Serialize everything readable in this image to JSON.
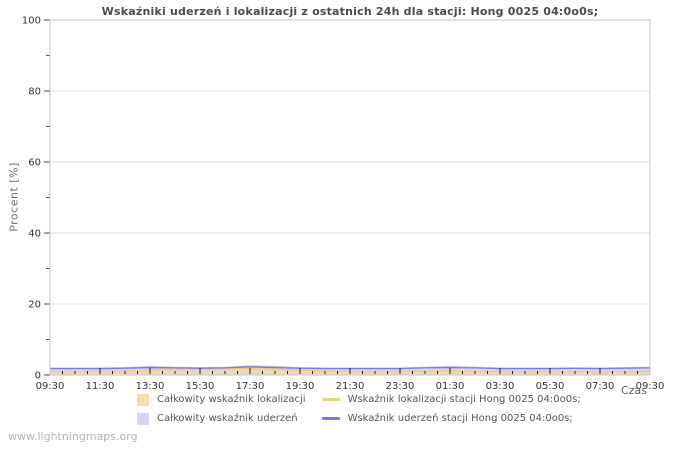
{
  "title": "Wskaźniki uderzeń i lokalizacji z ostatnich 24h dla stacji: Hong 0025 04:0o0s;",
  "watermark": "www.lightningmaps.org",
  "axes": {
    "y_label": "Procent  [%]",
    "x_label": "Czas"
  },
  "legend": [
    {
      "type": "area",
      "color": "#f8ddb0",
      "label": "Całkowity wskaźnik lokalizacji"
    },
    {
      "type": "area",
      "color": "#d4d4f5",
      "label": "Całkowity wskaźnik uderzeń"
    },
    {
      "type": "line",
      "color": "#f2ca7e",
      "label": "Wskaźnik lokalizacji stacji Hong 0025 04:0o0s;"
    },
    {
      "type": "line",
      "color": "#7b7bdf",
      "label": "Wskaźnik uderzeń stacji Hong 0025 04:0o0s;"
    }
  ],
  "chart_data": {
    "type": "area",
    "title": "Wskaźniki uderzeń i lokalizacji z ostatnich 24h dla stacji: Hong 0025 04:0o0s;",
    "xlabel": "Czas",
    "ylabel": "Procent [%]",
    "ylim": [
      0,
      100
    ],
    "y_ticks": [
      0,
      20,
      40,
      60,
      80,
      100
    ],
    "y_minor_ticks": [
      10,
      30,
      50,
      70,
      90
    ],
    "grid": true,
    "legend_position": "bottom",
    "x": [
      "09:30",
      "10:30",
      "11:30",
      "12:30",
      "13:30",
      "14:30",
      "15:30",
      "16:30",
      "17:30",
      "18:30",
      "19:30",
      "20:30",
      "21:30",
      "22:30",
      "23:30",
      "00:30",
      "01:30",
      "02:30",
      "03:30",
      "04:30",
      "05:30",
      "06:30",
      "07:30",
      "08:30",
      "09:30"
    ],
    "x_tick_labels": [
      "09:30",
      "11:30",
      "13:30",
      "15:30",
      "17:30",
      "19:30",
      "21:30",
      "23:30",
      "01:30",
      "03:30",
      "05:30",
      "07:30",
      "09:30"
    ],
    "x_minor_tick_interval_minutes": 30,
    "series": [
      {
        "name": "Całkowity wskaźnik uderzeń",
        "type": "area",
        "color": "#cfcff0",
        "stroke": "#c2c2ea",
        "fill_opacity": 0.8,
        "values": [
          2.0,
          2.0,
          2.0,
          2.1,
          2.4,
          2.2,
          2.1,
          2.2,
          2.6,
          2.4,
          2.1,
          2.0,
          2.0,
          2.0,
          2.0,
          2.2,
          2.4,
          2.2,
          2.0,
          2.0,
          2.0,
          2.0,
          2.0,
          2.1,
          2.2
        ]
      },
      {
        "name": "Całkowity wskaźnik lokalizacji",
        "type": "area",
        "color": "#f3d9a8",
        "stroke": "#e9cb90",
        "fill_opacity": 0.65,
        "values": [
          0.9,
          1.0,
          1.0,
          1.1,
          1.5,
          1.8,
          1.9,
          2.1,
          2.2,
          1.8,
          1.4,
          1.2,
          1.1,
          1.0,
          1.1,
          1.2,
          1.3,
          1.2,
          1.0,
          0.9,
          1.0,
          1.0,
          0.9,
          1.0,
          1.1
        ]
      },
      {
        "name": "Wskaźnik lokalizacji stacji Hong 0025 04:0o0s;",
        "type": "line",
        "color": "#f2ca7e",
        "values": [
          1.0,
          1.0,
          1.1,
          1.1,
          1.3,
          1.5,
          1.6,
          1.7,
          1.8,
          1.5,
          1.3,
          1.1,
          1.0,
          1.0,
          1.1,
          1.1,
          1.2,
          1.1,
          1.0,
          0.9,
          1.0,
          1.0,
          0.9,
          1.0,
          1.0
        ]
      },
      {
        "name": "Wskaźnik uderzeń stacji Hong 0025 04:0o0s;",
        "type": "line",
        "color": "#7b7bdf",
        "values": [
          1.8,
          1.8,
          1.8,
          1.9,
          2.1,
          2.0,
          1.9,
          2.0,
          2.3,
          2.1,
          1.9,
          1.8,
          1.8,
          1.8,
          1.8,
          2.0,
          2.1,
          2.0,
          1.8,
          1.8,
          1.8,
          1.9,
          1.8,
          1.9,
          2.0
        ]
      }
    ]
  }
}
